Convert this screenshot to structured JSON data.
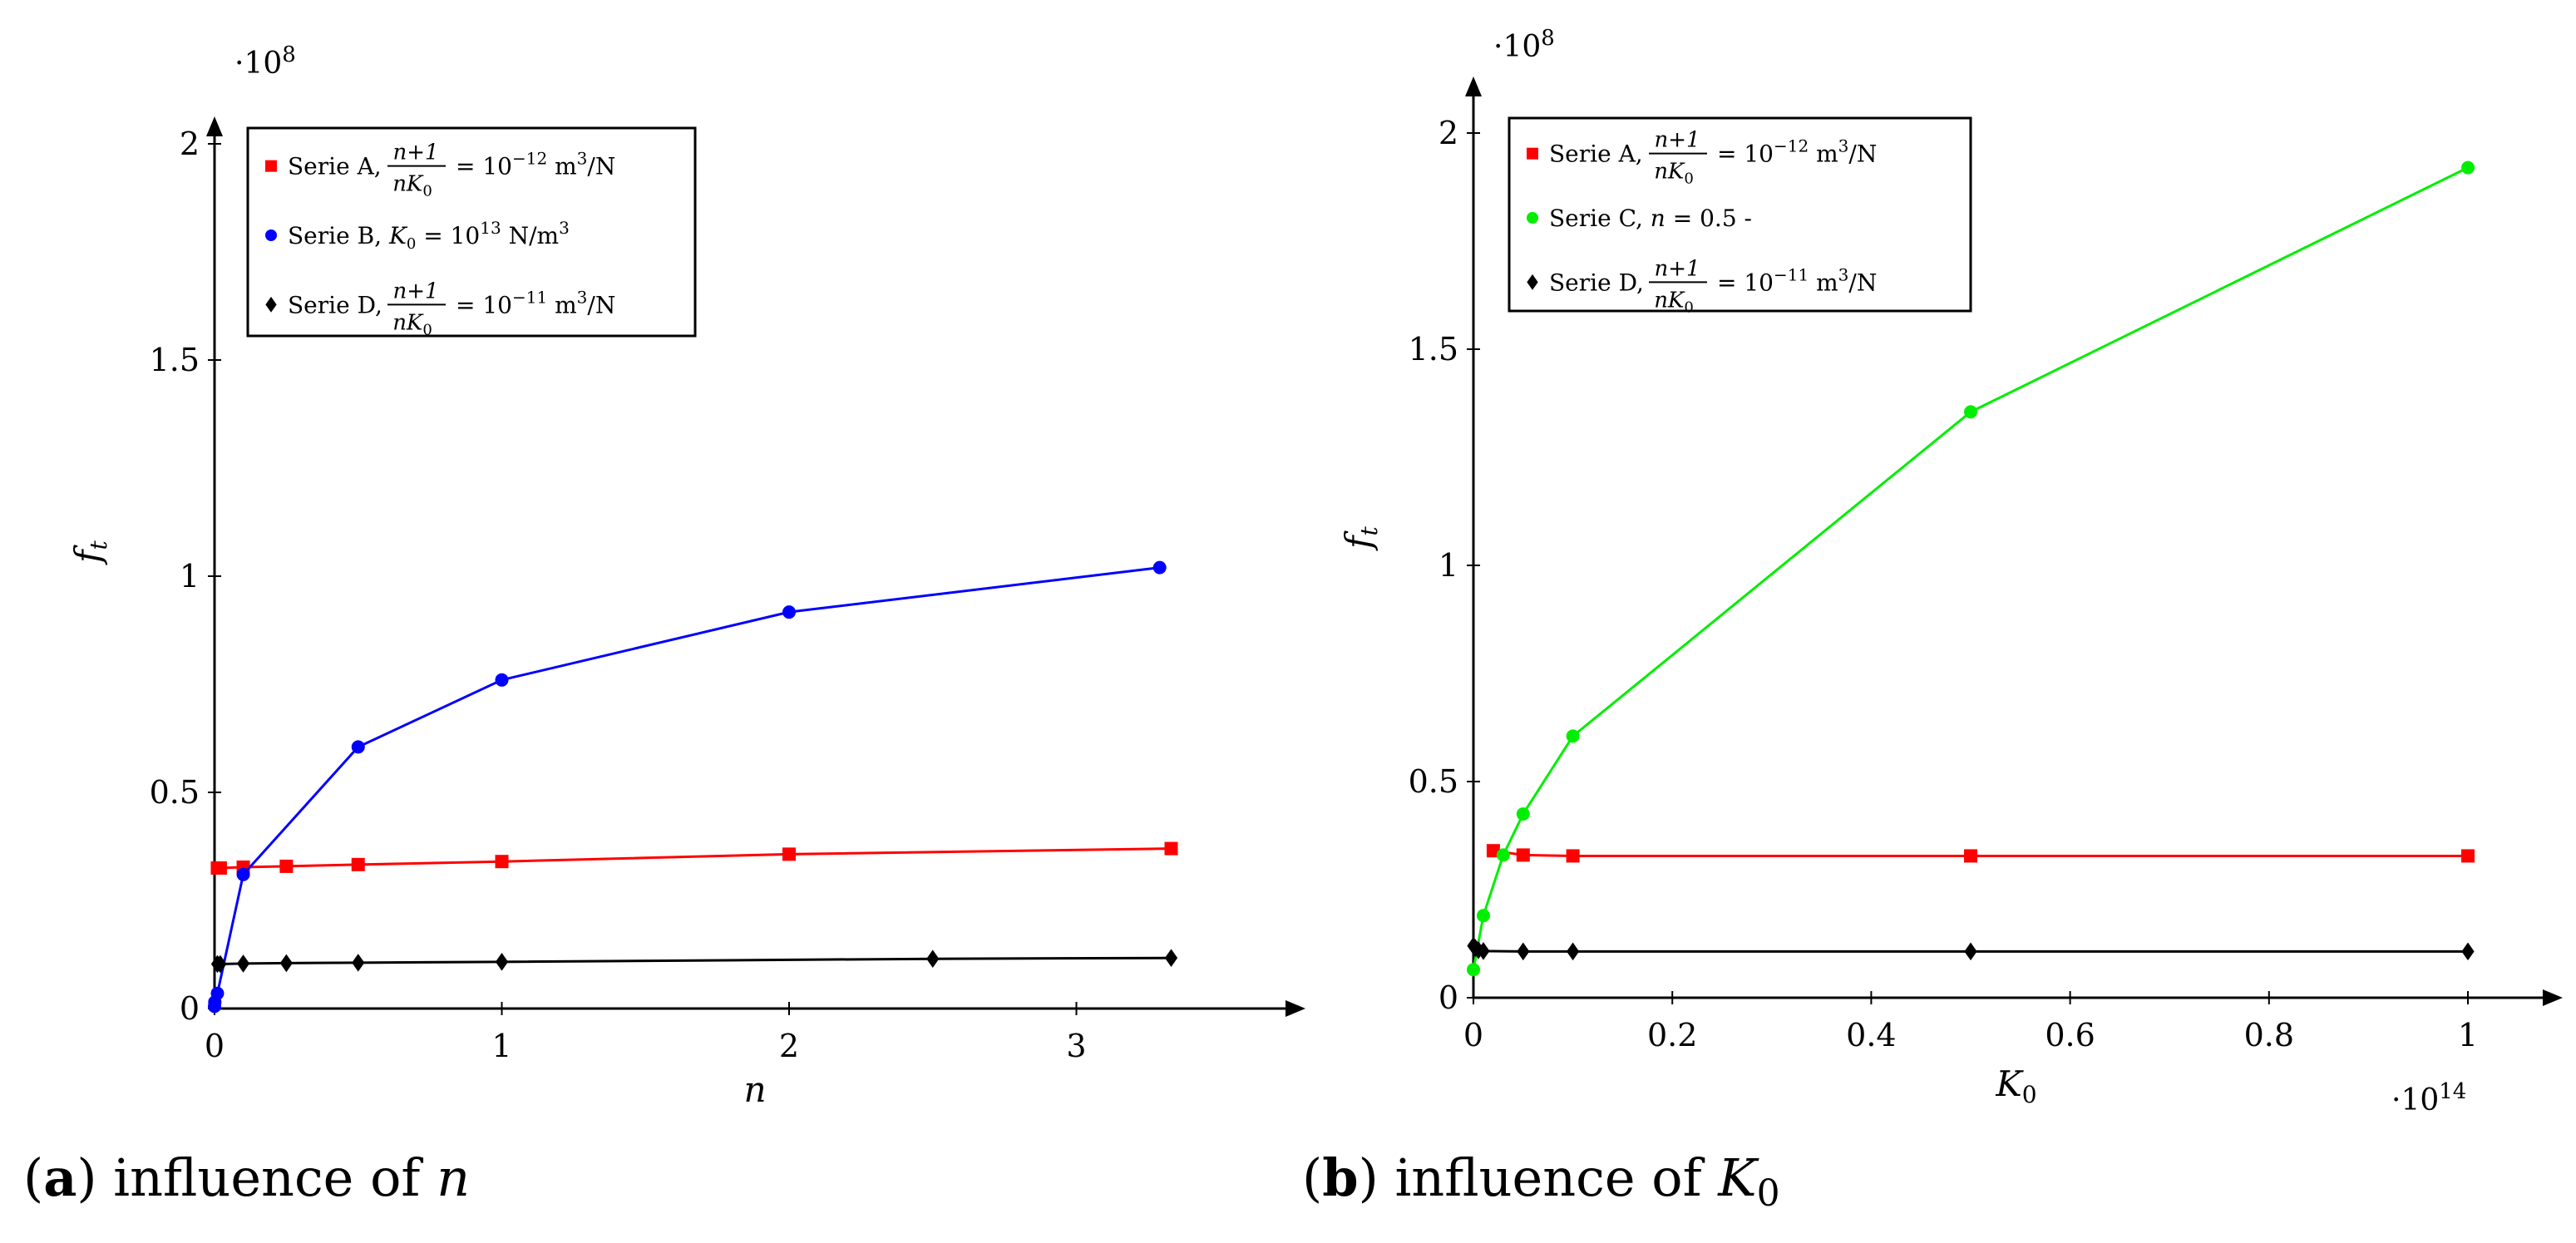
{
  "chart_data": [
    {
      "type": "line",
      "caption": {
        "letter": "a",
        "text": "influence of",
        "var": "n"
      },
      "xlabel": "n",
      "ylabel": "f",
      "ylabel_sub": "t",
      "y_scale_label": "·10",
      "y_scale_exp": "8",
      "xlim": [
        0,
        3.8
      ],
      "ylim": [
        0,
        2.0
      ],
      "xticks": [
        0,
        1,
        2,
        3
      ],
      "xtick_labels": [
        "0",
        "1",
        "2",
        "3"
      ],
      "yticks": [
        0,
        0.5,
        1,
        1.5,
        2
      ],
      "ytick_labels": [
        "0",
        "0.5",
        "1",
        "1.5",
        "2"
      ],
      "legend": [
        {
          "series": "A",
          "name": "Serie A,",
          "expr": "frac",
          "frac_num": "n+1",
          "frac_den": "nK",
          "frac_den_sub": "0",
          "eq": "= 10",
          "sup": "−12",
          "unit": " m",
          "unit_sup": "3",
          "unit_end": "/N"
        },
        {
          "series": "B",
          "name": "Serie B,",
          "expr": "k0",
          "k_sym": "K",
          "k_sub": "0",
          "eq": " = 10",
          "sup": "13",
          "unit": " N/m",
          "unit_sup": "3",
          "unit_end": ""
        },
        {
          "series": "D",
          "name": "Serie D,",
          "expr": "frac",
          "frac_num": "n+1",
          "frac_den": "nK",
          "frac_den_sub": "0",
          "eq": "= 10",
          "sup": "−11",
          "unit": " m",
          "unit_sup": "3",
          "unit_end": "/N"
        }
      ],
      "series": [
        {
          "id": "A",
          "name": "Serie A",
          "color": "#ff0000",
          "marker": "square",
          "x": [
            0.01,
            0.02,
            0.1,
            0.25,
            0.5,
            1,
            2,
            3.33
          ],
          "y": [
            0.325,
            0.325,
            0.327,
            0.329,
            0.333,
            0.34,
            0.357,
            0.37
          ]
        },
        {
          "id": "B",
          "name": "Serie B",
          "color": "#0000ff",
          "marker": "circle",
          "x": [
            0,
            0.001,
            0.01,
            0.1,
            0.5,
            1,
            2,
            3.29
          ],
          "y": [
            0.005,
            0.015,
            0.035,
            0.31,
            0.605,
            0.76,
            0.917,
            1.02
          ]
        },
        {
          "id": "D",
          "name": "Serie D",
          "color": "#000000",
          "marker": "diamond",
          "x": [
            0.01,
            0.02,
            0.1,
            0.25,
            0.5,
            1,
            2.5,
            3.33
          ],
          "y": [
            0.103,
            0.103,
            0.104,
            0.105,
            0.106,
            0.108,
            0.115,
            0.117
          ]
        }
      ]
    },
    {
      "type": "line",
      "caption": {
        "letter": "b",
        "text": "influence of",
        "var": "K",
        "var_sub": "0"
      },
      "xlabel": "K",
      "xlabel_sub": "0",
      "x_scale_label": "·10",
      "x_scale_exp": "14",
      "ylabel": "f",
      "ylabel_sub": "t",
      "y_scale_label": "·10",
      "y_scale_exp": "8",
      "xlim": [
        0,
        1.09
      ],
      "ylim": [
        0,
        2.05
      ],
      "xticks": [
        0,
        0.2,
        0.4,
        0.6,
        0.8,
        1
      ],
      "xtick_labels": [
        "0",
        "0.2",
        "0.4",
        "0.6",
        "0.8",
        "1"
      ],
      "yticks": [
        0,
        0.5,
        1,
        1.5,
        2
      ],
      "ytick_labels": [
        "0",
        "0.5",
        "1",
        "1.5",
        "2"
      ],
      "legend": [
        {
          "series": "A",
          "name": "Serie A,",
          "expr": "frac",
          "frac_num": "n+1",
          "frac_den": "nK",
          "frac_den_sub": "0",
          "eq": "= 10",
          "sup": "−12",
          "unit": " m",
          "unit_sup": "3",
          "unit_end": "/N"
        },
        {
          "series": "C",
          "name": "Serie C,",
          "expr": "n05",
          "n_sym": "n",
          "eq": " = 0.5 -"
        },
        {
          "series": "D",
          "name": "Serie D,",
          "expr": "frac",
          "frac_num": "n+1",
          "frac_den": "nK",
          "frac_den_sub": "0",
          "eq": "= 10",
          "sup": "−11",
          "unit": " m",
          "unit_sup": "3",
          "unit_end": "/N"
        }
      ],
      "series": [
        {
          "id": "A",
          "name": "Serie A",
          "color": "#ff0000",
          "marker": "square",
          "x": [
            0.02,
            0.05,
            0.1,
            0.5,
            1
          ],
          "y": [
            0.34,
            0.33,
            0.328,
            0.328,
            0.328
          ]
        },
        {
          "id": "C",
          "name": "Serie C",
          "color": "#00ee00",
          "marker": "circle",
          "x": [
            0,
            0.01,
            0.03,
            0.05,
            0.1,
            0.5,
            1
          ],
          "y": [
            0.065,
            0.19,
            0.33,
            0.425,
            0.605,
            1.355,
            1.92
          ]
        },
        {
          "id": "D",
          "name": "Serie D",
          "color": "#000000",
          "marker": "diamond",
          "x": [
            0,
            0.002,
            0.005,
            0.01,
            0.05,
            0.1,
            0.5,
            1
          ],
          "y": [
            0.12,
            0.115,
            0.11,
            0.108,
            0.107,
            0.107,
            0.107,
            0.107
          ]
        }
      ]
    }
  ]
}
